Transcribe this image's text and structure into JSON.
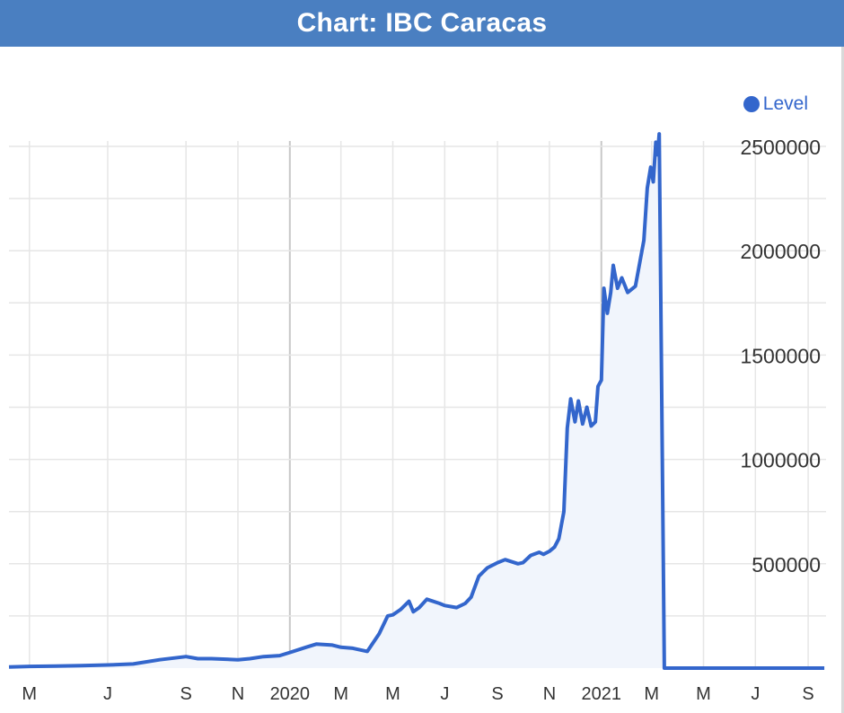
{
  "header": {
    "title": "Chart: IBC Caracas"
  },
  "legend": {
    "label": "Level",
    "color": "#3366cc"
  },
  "chart_data": {
    "type": "area",
    "title": "Chart: IBC Caracas",
    "xlabel": "",
    "ylabel": "",
    "ylim": [
      0,
      2500000
    ],
    "y_ticks": [
      500000,
      1000000,
      1500000,
      2000000,
      2500000
    ],
    "y_tick_labels": [
      "500000",
      "1000000",
      "1500000",
      "2000000",
      "2500000"
    ],
    "x_range": [
      "2019-03-01",
      "2021-09-20"
    ],
    "x_ticks": [
      {
        "date": "2019-03-01",
        "label": "M"
      },
      {
        "date": "2019-06-01",
        "label": "J"
      },
      {
        "date": "2019-09-01",
        "label": "S"
      },
      {
        "date": "2019-11-01",
        "label": "N"
      },
      {
        "date": "2020-01-01",
        "label": "2020"
      },
      {
        "date": "2020-03-01",
        "label": "M"
      },
      {
        "date": "2020-05-01",
        "label": "M"
      },
      {
        "date": "2020-07-01",
        "label": "J"
      },
      {
        "date": "2020-09-01",
        "label": "S"
      },
      {
        "date": "2020-11-01",
        "label": "N"
      },
      {
        "date": "2021-01-01",
        "label": "2021"
      },
      {
        "date": "2021-03-01",
        "label": "M"
      },
      {
        "date": "2021-05-01",
        "label": "M"
      },
      {
        "date": "2021-07-01",
        "label": "J"
      },
      {
        "date": "2021-09-01",
        "label": "S"
      }
    ],
    "grid": true,
    "legend_position": "top-right",
    "series": [
      {
        "name": "Level",
        "color": "#3366cc",
        "points": [
          [
            "2019-02-05",
            5000
          ],
          [
            "2019-03-01",
            8000
          ],
          [
            "2019-04-01",
            10000
          ],
          [
            "2019-05-01",
            12000
          ],
          [
            "2019-06-01",
            15000
          ],
          [
            "2019-07-01",
            20000
          ],
          [
            "2019-08-01",
            40000
          ],
          [
            "2019-09-01",
            55000
          ],
          [
            "2019-09-15",
            45000
          ],
          [
            "2019-10-01",
            45000
          ],
          [
            "2019-11-01",
            40000
          ],
          [
            "2019-11-15",
            45000
          ],
          [
            "2019-12-01",
            55000
          ],
          [
            "2019-12-20",
            60000
          ],
          [
            "2020-01-01",
            75000
          ],
          [
            "2020-01-20",
            100000
          ],
          [
            "2020-02-01",
            115000
          ],
          [
            "2020-02-20",
            110000
          ],
          [
            "2020-03-01",
            100000
          ],
          [
            "2020-03-15",
            95000
          ],
          [
            "2020-04-01",
            80000
          ],
          [
            "2020-04-15",
            165000
          ],
          [
            "2020-04-25",
            250000
          ],
          [
            "2020-05-01",
            255000
          ],
          [
            "2020-05-10",
            280000
          ],
          [
            "2020-05-20",
            320000
          ],
          [
            "2020-05-25",
            270000
          ],
          [
            "2020-06-01",
            290000
          ],
          [
            "2020-06-10",
            330000
          ],
          [
            "2020-06-25",
            310000
          ],
          [
            "2020-07-01",
            300000
          ],
          [
            "2020-07-15",
            290000
          ],
          [
            "2020-07-25",
            310000
          ],
          [
            "2020-08-01",
            340000
          ],
          [
            "2020-08-10",
            440000
          ],
          [
            "2020-08-20",
            480000
          ],
          [
            "2020-09-01",
            505000
          ],
          [
            "2020-09-10",
            520000
          ],
          [
            "2020-09-25",
            500000
          ],
          [
            "2020-10-01",
            505000
          ],
          [
            "2020-10-10",
            540000
          ],
          [
            "2020-10-20",
            555000
          ],
          [
            "2020-10-25",
            545000
          ],
          [
            "2020-11-01",
            560000
          ],
          [
            "2020-11-07",
            580000
          ],
          [
            "2020-11-12",
            620000
          ],
          [
            "2020-11-18",
            750000
          ],
          [
            "2020-11-22",
            1150000
          ],
          [
            "2020-11-26",
            1290000
          ],
          [
            "2020-12-01",
            1180000
          ],
          [
            "2020-12-05",
            1280000
          ],
          [
            "2020-12-10",
            1170000
          ],
          [
            "2020-12-15",
            1250000
          ],
          [
            "2020-12-20",
            1160000
          ],
          [
            "2020-12-25",
            1180000
          ],
          [
            "2020-12-28",
            1350000
          ],
          [
            "2021-01-01",
            1380000
          ],
          [
            "2021-01-04",
            1820000
          ],
          [
            "2021-01-08",
            1700000
          ],
          [
            "2021-01-12",
            1800000
          ],
          [
            "2021-01-15",
            1930000
          ],
          [
            "2021-01-20",
            1820000
          ],
          [
            "2021-01-25",
            1870000
          ],
          [
            "2021-02-01",
            1800000
          ],
          [
            "2021-02-10",
            1830000
          ],
          [
            "2021-02-20",
            2050000
          ],
          [
            "2021-02-24",
            2300000
          ],
          [
            "2021-02-28",
            2400000
          ],
          [
            "2021-03-03",
            2330000
          ],
          [
            "2021-03-06",
            2520000
          ],
          [
            "2021-03-08",
            2460000
          ],
          [
            "2021-03-10",
            2560000
          ],
          [
            "2021-03-16",
            0
          ],
          [
            "2021-09-20",
            0
          ]
        ]
      }
    ]
  }
}
